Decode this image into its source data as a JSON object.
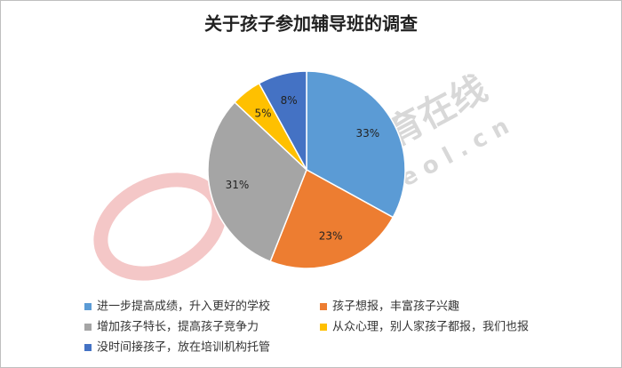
{
  "chart_data": {
    "type": "pie",
    "title": "关于孩子参加辅导班的调查",
    "categories": [
      "进一步提高成绩，升入更好的学校",
      "孩子想报，丰富孩子兴趣",
      "增加孩子特长，提高孩子竞争力",
      "从众心理，别人家孩子都报，我们也报",
      "没时间接孩子，放在培训机构托管"
    ],
    "values": [
      33,
      23,
      31,
      5,
      8
    ],
    "value_labels": [
      "33%",
      "23%",
      "31%",
      "5%",
      "8%"
    ],
    "colors": [
      "#5b9bd5",
      "#ed7d31",
      "#a5a5a5",
      "#ffc000",
      "#4472c4"
    ],
    "legend": "bottom",
    "watermark": [
      "中国教育在线",
      "w w w . e o l . c n"
    ]
  }
}
